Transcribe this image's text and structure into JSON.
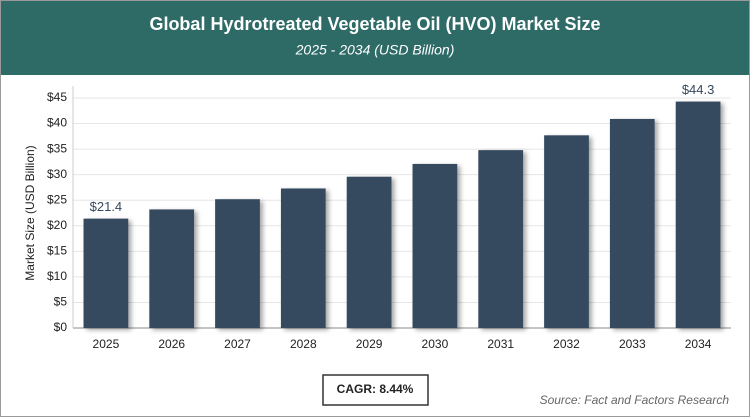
{
  "chart_data": {
    "type": "bar",
    "title": "Global Hydrotreated Vegetable Oil (HVO) Market Size",
    "subtitle": "2025 - 2034 (USD Billion)",
    "y_label": "Market Size (USD Billion)",
    "categories": [
      "2025",
      "2026",
      "2027",
      "2028",
      "2029",
      "2030",
      "2031",
      "2032",
      "2033",
      "2034"
    ],
    "values": [
      21.4,
      23.2,
      25.2,
      27.3,
      29.6,
      32.1,
      34.8,
      37.7,
      40.9,
      44.3
    ],
    "value_labels": [
      "$21.4",
      null,
      null,
      null,
      null,
      null,
      null,
      null,
      null,
      "$44.3"
    ],
    "color": "#34495e",
    "ylim": [
      0,
      45
    ],
    "yticks": [
      {
        "value": 0,
        "label": "$0"
      },
      {
        "value": 5,
        "label": "$5"
      },
      {
        "value": 10,
        "label": "$10"
      },
      {
        "value": 15,
        "label": "$15"
      },
      {
        "value": 20,
        "label": "$20"
      },
      {
        "value": 25,
        "label": "$25"
      },
      {
        "value": 30,
        "label": "$30"
      },
      {
        "value": 35,
        "label": "$35"
      },
      {
        "value": 40,
        "label": "$40"
      },
      {
        "value": 45,
        "label": "$45"
      }
    ],
    "grid": true,
    "annotation": "CAGR: 8.44%",
    "source": "Source: Fact and Factors Research"
  }
}
